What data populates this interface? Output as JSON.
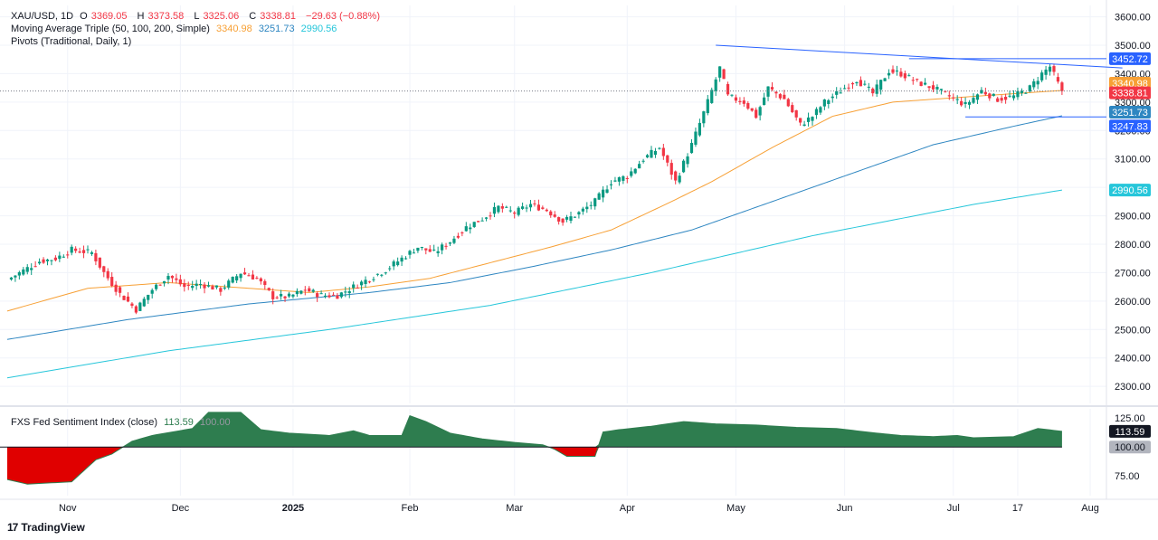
{
  "header": {
    "symbol": "XAU/USD, 1D",
    "open_label": "O",
    "open": "3369.05",
    "high_label": "H",
    "high": "3373.58",
    "low_label": "L",
    "low": "3325.06",
    "close_label": "C",
    "close": "3338.81",
    "change": "−29.63 (−0.88%)",
    "ma_title": "Moving Average Triple (50, 100, 200, Simple)",
    "ma50": "3340.98",
    "ma100": "3251.73",
    "ma200": "2990.56",
    "pivots_title": "Pivots (Traditional, Daily, 1)",
    "sentiment_title": "FXS Fed Sentiment Index (close)",
    "sentiment_value": "113.59",
    "sentiment_base": "100.00"
  },
  "branding": {
    "name": "TradingView",
    "logo_glyph": "17"
  },
  "colors": {
    "up": "#089981",
    "down": "#f23645",
    "ma50": "#f7a035",
    "ma100": "#2e86c1",
    "ma200": "#26c6da",
    "trend": "#2962ff",
    "sentiment_up": "#2e7d4f",
    "sentiment_down": "#e00000"
  },
  "chart_data": [
    {
      "type": "candlestick",
      "title": "XAU/USD, 1D",
      "ylim": [
        2240,
        3640
      ],
      "yticks": [
        2300,
        2400,
        2500,
        2600,
        2700,
        2800,
        2900,
        3000,
        3100,
        3200,
        3300,
        3400,
        3500,
        3600
      ],
      "xticks": [
        "Nov",
        "Dec",
        "2025",
        "Feb",
        "Mar",
        "Apr",
        "May",
        "Jun",
        "Jul",
        "17",
        "Aug"
      ],
      "price_labels": [
        {
          "value": "3452.72",
          "series": "pivot"
        },
        {
          "value": "3340.98",
          "series": "ma50"
        },
        {
          "value": "3338.81",
          "series": "close"
        },
        {
          "value": "3251.73",
          "series": "ma100"
        },
        {
          "value": "3247.83",
          "series": "pivot"
        },
        {
          "value": "2990.56",
          "series": "ma200"
        }
      ],
      "close_anchors": [
        [
          0,
          2675
        ],
        [
          8,
          2740
        ],
        [
          12,
          2750
        ],
        [
          16,
          2780
        ],
        [
          21,
          2770
        ],
        [
          24,
          2700
        ],
        [
          28,
          2625
        ],
        [
          32,
          2570
        ],
        [
          36,
          2640
        ],
        [
          40,
          2690
        ],
        [
          44,
          2650
        ],
        [
          48,
          2660
        ],
        [
          53,
          2640
        ],
        [
          58,
          2700
        ],
        [
          62,
          2680
        ],
        [
          66,
          2615
        ],
        [
          70,
          2615
        ],
        [
          74,
          2640
        ],
        [
          78,
          2620
        ],
        [
          82,
          2620
        ],
        [
          86,
          2650
        ],
        [
          90,
          2680
        ],
        [
          94,
          2710
        ],
        [
          98,
          2750
        ],
        [
          102,
          2790
        ],
        [
          106,
          2770
        ],
        [
          110,
          2810
        ],
        [
          114,
          2860
        ],
        [
          118,
          2890
        ],
        [
          122,
          2930
        ],
        [
          126,
          2910
        ],
        [
          130,
          2940
        ],
        [
          134,
          2920
        ],
        [
          138,
          2880
        ],
        [
          142,
          2910
        ],
        [
          146,
          2950
        ],
        [
          150,
          3020
        ],
        [
          154,
          3040
        ],
        [
          158,
          3100
        ],
        [
          162,
          3140
        ],
        [
          166,
          3020
        ],
        [
          170,
          3150
        ],
        [
          174,
          3300
        ],
        [
          177,
          3420
        ],
        [
          179,
          3320
        ],
        [
          183,
          3300
        ],
        [
          186,
          3250
        ],
        [
          189,
          3350
        ],
        [
          193,
          3310
        ],
        [
          197,
          3220
        ],
        [
          200,
          3250
        ],
        [
          203,
          3300
        ],
        [
          207,
          3340
        ],
        [
          211,
          3380
        ],
        [
          215,
          3330
        ],
        [
          219,
          3410
        ],
        [
          222,
          3400
        ],
        [
          226,
          3370
        ],
        [
          230,
          3350
        ],
        [
          234,
          3320
        ],
        [
          238,
          3290
        ],
        [
          242,
          3340
        ],
        [
          246,
          3310
        ],
        [
          250,
          3320
        ],
        [
          254,
          3350
        ],
        [
          257,
          3400
        ],
        [
          259,
          3425
        ],
        [
          261,
          3365
        ],
        [
          262,
          3338.81
        ]
      ],
      "ma50_anchors": [
        [
          0,
          2565
        ],
        [
          20,
          2645
        ],
        [
          40,
          2665
        ],
        [
          60,
          2645
        ],
        [
          75,
          2630
        ],
        [
          90,
          2650
        ],
        [
          105,
          2680
        ],
        [
          120,
          2735
        ],
        [
          135,
          2790
        ],
        [
          150,
          2850
        ],
        [
          165,
          2950
        ],
        [
          175,
          3020
        ],
        [
          190,
          3140
        ],
        [
          205,
          3250
        ],
        [
          220,
          3300
        ],
        [
          240,
          3320
        ],
        [
          262,
          3340.98
        ]
      ],
      "ma100_anchors": [
        [
          0,
          2465
        ],
        [
          30,
          2535
        ],
        [
          60,
          2590
        ],
        [
          90,
          2630
        ],
        [
          110,
          2665
        ],
        [
          130,
          2720
        ],
        [
          150,
          2780
        ],
        [
          170,
          2850
        ],
        [
          190,
          2950
        ],
        [
          210,
          3050
        ],
        [
          230,
          3150
        ],
        [
          250,
          3215
        ],
        [
          262,
          3251.73
        ]
      ],
      "ma200_anchors": [
        [
          0,
          2330
        ],
        [
          40,
          2425
        ],
        [
          80,
          2500
        ],
        [
          120,
          2585
        ],
        [
          160,
          2700
        ],
        [
          200,
          2830
        ],
        [
          240,
          2940
        ],
        [
          262,
          2990.56
        ]
      ],
      "trendline": {
        "from": [
          176,
          3500
        ],
        "to": [
          277,
          3420
        ]
      },
      "pivot_lines": [
        {
          "value": 3452.72,
          "from": 224,
          "to": 283
        },
        {
          "value": 3247.83,
          "from": 238,
          "to": 283
        }
      ]
    },
    {
      "type": "area",
      "title": "FXS Fed Sentiment Index (close)",
      "ylim": [
        58,
        133
      ],
      "yticks": [
        75,
        100,
        125
      ],
      "baseline": 100,
      "anchors": [
        [
          0,
          72
        ],
        [
          5,
          68
        ],
        [
          16,
          70
        ],
        [
          22,
          89
        ],
        [
          26,
          94
        ],
        [
          31,
          105
        ],
        [
          36,
          110
        ],
        [
          41,
          113
        ],
        [
          46,
          116
        ],
        [
          50,
          130
        ],
        [
          54,
          130
        ],
        [
          58,
          130
        ],
        [
          63,
          115
        ],
        [
          70,
          112
        ],
        [
          80,
          110
        ],
        [
          86,
          114
        ],
        [
          90,
          110
        ],
        [
          98,
          110
        ],
        [
          100,
          127
        ],
        [
          104,
          122
        ],
        [
          110,
          112
        ],
        [
          118,
          107
        ],
        [
          126,
          104
        ],
        [
          133,
          102
        ],
        [
          136,
          98
        ],
        [
          139,
          92
        ],
        [
          146,
          92
        ],
        [
          148,
          113
        ],
        [
          152,
          115
        ],
        [
          160,
          118
        ],
        [
          168,
          122
        ],
        [
          176,
          120
        ],
        [
          186,
          119
        ],
        [
          196,
          117
        ],
        [
          206,
          116
        ],
        [
          216,
          112
        ],
        [
          222,
          110
        ],
        [
          230,
          109
        ],
        [
          236,
          110
        ],
        [
          240,
          108
        ],
        [
          250,
          109
        ],
        [
          256,
          116
        ],
        [
          262,
          113.59
        ]
      ]
    }
  ]
}
